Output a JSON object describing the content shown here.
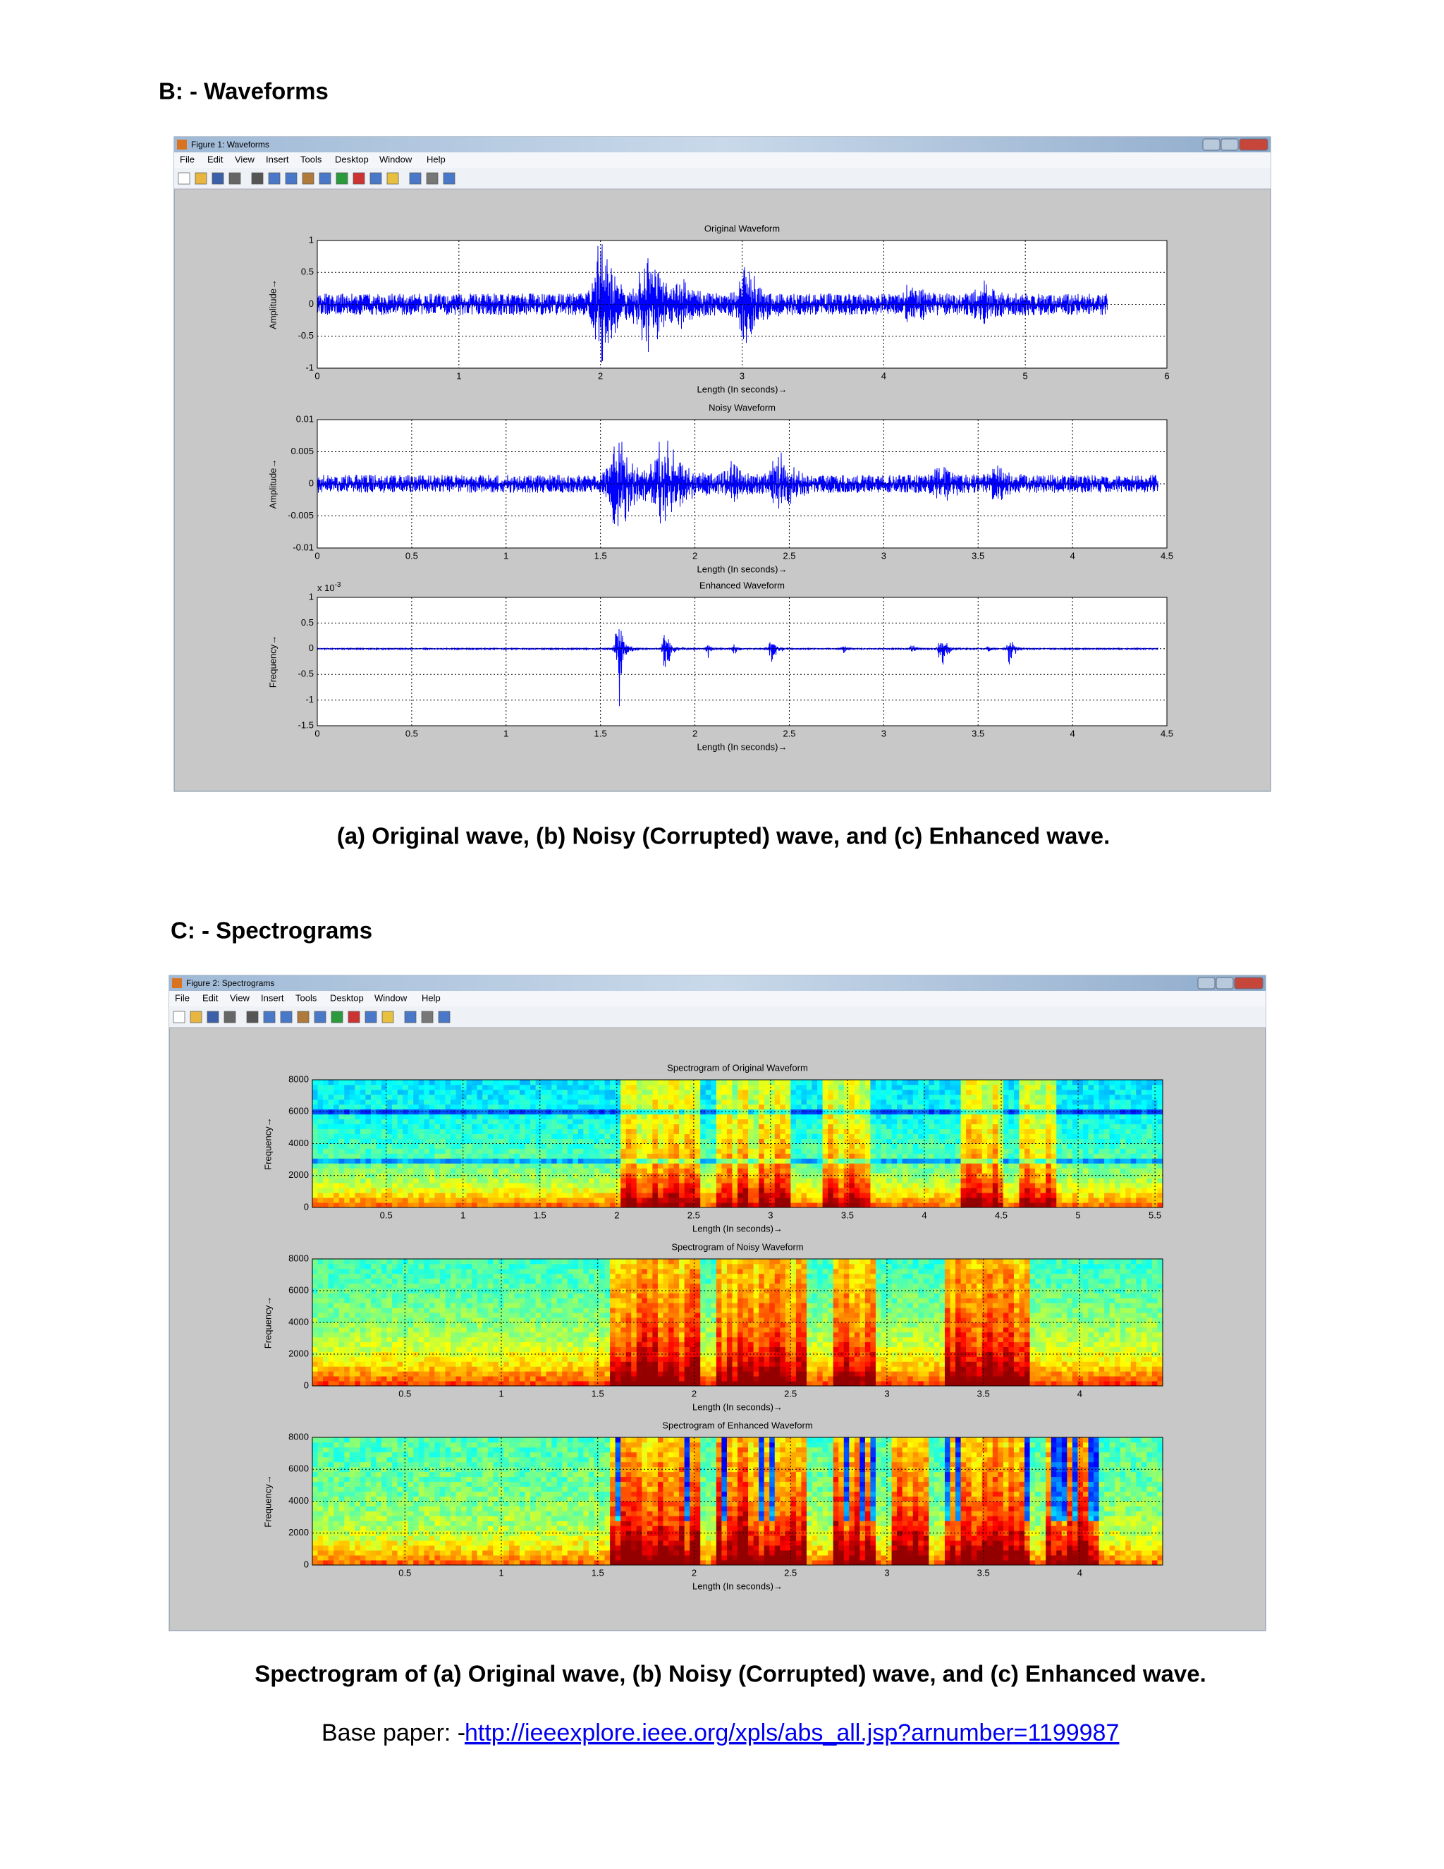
{
  "section_b": {
    "heading": "B: - Waveforms",
    "figure": {
      "window_title": "Figure 1: Waveforms",
      "menu": [
        "File",
        "Edit",
        "View",
        "Insert",
        "Tools",
        "Desktop",
        "Window",
        "Help"
      ],
      "plots": [
        {
          "title": "Original Waveform",
          "xlabel": "Length (In seconds)→",
          "ylabel": "Amplitude→",
          "xlim": [
            0,
            6
          ],
          "xticks": [
            0,
            1,
            2,
            3,
            4,
            5,
            6
          ],
          "ylim": [
            -1,
            1
          ],
          "yticks": [
            -1,
            -0.5,
            0,
            0.5,
            1
          ]
        },
        {
          "title": "Noisy Waveform",
          "xlabel": "Length (In seconds)→",
          "ylabel": "Amplitude→",
          "xlim": [
            0,
            4.5
          ],
          "xticks": [
            0,
            0.5,
            1,
            1.5,
            2,
            2.5,
            3,
            3.5,
            4,
            4.5
          ],
          "ylim": [
            -0.01,
            0.01
          ],
          "yticks": [
            -0.01,
            -0.005,
            0,
            0.005,
            0.01
          ]
        },
        {
          "title": "Enhanced Waveform",
          "xlabel": "Length (In seconds)→",
          "ylabel": "Frequency→",
          "xlim": [
            0,
            4.5
          ],
          "xticks": [
            0,
            0.5,
            1,
            1.5,
            2,
            2.5,
            3,
            3.5,
            4,
            4.5
          ],
          "ylim": [
            -1.5,
            1
          ],
          "yticks": [
            -1.5,
            -1,
            -0.5,
            0,
            0.5,
            1
          ],
          "y_exponent": {
            "base": "x 10",
            "power": "-3"
          }
        }
      ]
    },
    "caption": "(a) Original wave, (b) Noisy (Corrupted) wave, and (c) Enhanced wave."
  },
  "section_c": {
    "heading": "C: - Spectrograms",
    "figure": {
      "window_title": "Figure 2: Spectrograms",
      "menu": [
        "File",
        "Edit",
        "View",
        "Insert",
        "Tools",
        "Desktop",
        "Window",
        "Help"
      ],
      "plots": [
        {
          "title": "Spectrogram of Original Waveform",
          "xlabel": "Length (In seconds)→",
          "ylabel": "Frequency→",
          "xlim": [
            0.02,
            5.55
          ],
          "xticks": [
            0.5,
            1,
            1.5,
            2,
            2.5,
            3,
            3.5,
            4,
            4.5,
            5,
            5.5
          ],
          "ylim": [
            0,
            8000
          ],
          "yticks": [
            0,
            2000,
            4000,
            6000,
            8000
          ]
        },
        {
          "title": "Spectrogram of Noisy Waveform",
          "xlabel": "Length (In seconds)→",
          "ylabel": "Frequency→",
          "xlim": [
            0.02,
            4.43
          ],
          "xticks": [
            0.5,
            1,
            1.5,
            2,
            2.5,
            3,
            3.5,
            4
          ],
          "ylim": [
            0,
            8000
          ],
          "yticks": [
            0,
            2000,
            4000,
            6000,
            8000
          ]
        },
        {
          "title": "Spectrogram of Enhanced Waveform",
          "xlabel": "Length (In seconds)→",
          "ylabel": "Frequency→",
          "xlim": [
            0.02,
            4.43
          ],
          "xticks": [
            0.5,
            1,
            1.5,
            2,
            2.5,
            3,
            3.5,
            4
          ],
          "ylim": [
            0,
            8000
          ],
          "yticks": [
            0,
            2000,
            4000,
            6000,
            8000
          ]
        }
      ]
    },
    "caption": "Spectrogram of (a) Original wave, (b) Noisy (Corrupted) wave, and (c) Enhanced wave."
  },
  "base_paper": {
    "label": "Base paper: -",
    "link": "http://ieeexplore.ieee.org/xpls/abs_all.jsp?arnumber=1199987"
  }
}
